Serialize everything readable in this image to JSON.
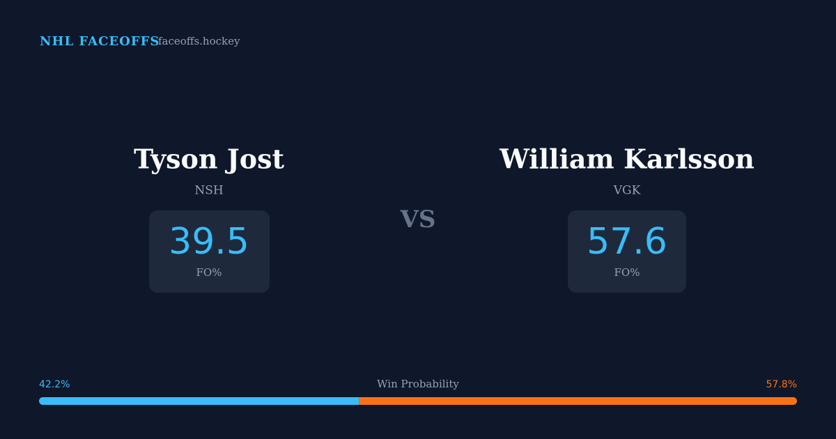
{
  "brand": "NHL FACEOFFS",
  "site": "faceoffs.hockey",
  "players": [
    {
      "name": "Tyson Jost",
      "team": "NSH",
      "fo_pct": 39.5,
      "fo_label": "FO%"
    },
    {
      "name": "William Karlsson",
      "team": "VGK",
      "fo_pct": 57.6,
      "fo_label": "FO%"
    }
  ],
  "versus": "VS",
  "win_probability": {
    "label": "Win Probability",
    "values": [
      42.2,
      57.8
    ],
    "value_labels": [
      "42.2%",
      "57.8%"
    ],
    "colors": [
      "#38bdf8",
      "#f97316"
    ]
  }
}
